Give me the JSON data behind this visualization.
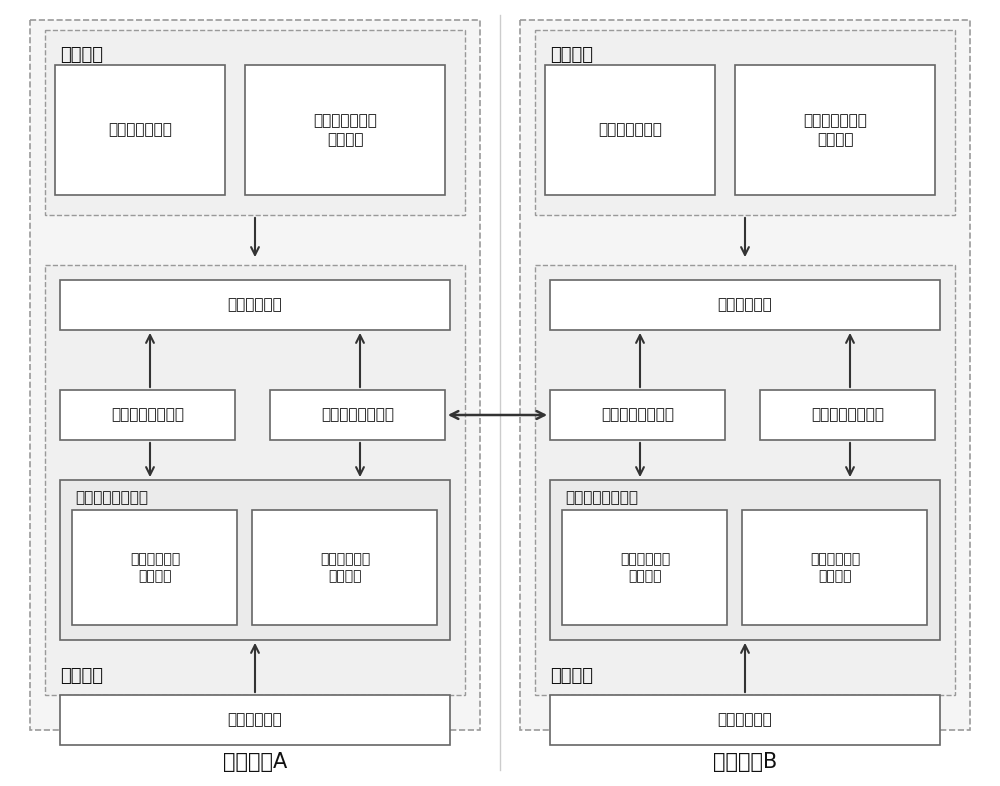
{
  "bg_color": "#ffffff",
  "title_A": "调度机构A",
  "title_B": "调度机构B",
  "label_yingyong": "应用节点",
  "label_daili": "代理节点",
  "label_guangyu_client": "广域订阅客户端",
  "label_client_mem": "客户端订阅信息\n共享内存",
  "label_sync": "订阅信息同步",
  "label_local_proc": "本地订阅处理模块",
  "label_wide_proc": "广域订阅处理模块",
  "label_sub_mem": "订阅信息共享内存",
  "label_local_mem": "本地订阅信息\n共享内存",
  "label_wide_mem": "广域订阅信息\n共享内存",
  "label_detect": "订阅信息检测",
  "edge_color": "#666666",
  "dash_color": "#888888",
  "fill_light": "#f8f8f8",
  "fill_medium": "#eeeeee",
  "fill_white": "#ffffff",
  "arrow_color": "#333333"
}
